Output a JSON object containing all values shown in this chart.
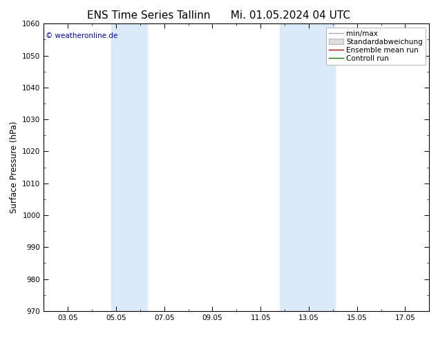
{
  "title": "ENS Time Series Tallinn",
  "title2": "Mi. 01.05.2024 04 UTC",
  "ylabel": "Surface Pressure (hPa)",
  "ylim": [
    970,
    1060
  ],
  "yticks": [
    970,
    980,
    990,
    1000,
    1010,
    1020,
    1030,
    1040,
    1050,
    1060
  ],
  "xtick_labels": [
    "03.05",
    "05.05",
    "07.05",
    "09.05",
    "11.05",
    "13.05",
    "15.05",
    "17.05"
  ],
  "xtick_positions": [
    2,
    4,
    6,
    8,
    10,
    12,
    14,
    16
  ],
  "xlim": [
    1,
    17
  ],
  "shaded_bands": [
    {
      "xmin": 3.8,
      "xmax": 5.3
    },
    {
      "xmin": 10.8,
      "xmax": 13.1
    }
  ],
  "shade_color": "#daeaf8",
  "background_color": "#ffffff",
  "watermark": "© weatheronline.de",
  "watermark_color": "#0000cc",
  "legend_items": [
    {
      "label": "min/max",
      "color": "#aaaaaa",
      "style": "line"
    },
    {
      "label": "Standardabweichung",
      "color": "#cccccc",
      "style": "band"
    },
    {
      "label": "Ensemble mean run",
      "color": "#cc0000",
      "style": "line"
    },
    {
      "label": "Controll run",
      "color": "#007700",
      "style": "line"
    }
  ],
  "title_fontsize": 11,
  "tick_fontsize": 7.5,
  "ylabel_fontsize": 8.5,
  "legend_fontsize": 7.5
}
